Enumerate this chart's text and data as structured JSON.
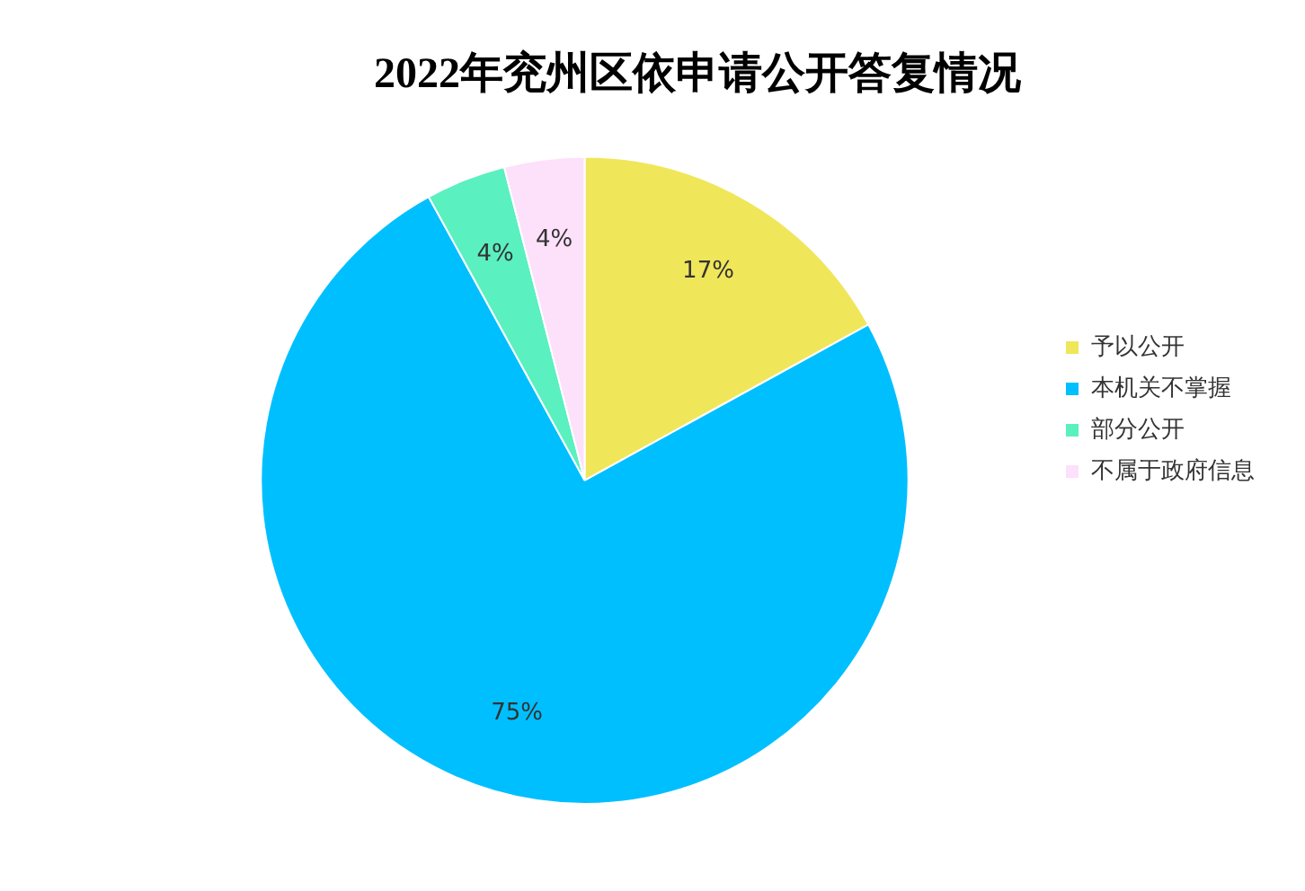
{
  "chart_data": {
    "type": "pie",
    "title": "2022年兖州区依申请公开答复情况",
    "categories": [
      "予以公开",
      "本机关不掌握",
      "部分公开",
      "不属于政府信息"
    ],
    "values": [
      17,
      75,
      4,
      4
    ],
    "colors": [
      "#f0e65a",
      "#00bfff",
      "#5af0c0",
      "#fde0fa"
    ],
    "value_labels": [
      "17%",
      "75%",
      "4%",
      "4%"
    ],
    "legend": "right"
  }
}
